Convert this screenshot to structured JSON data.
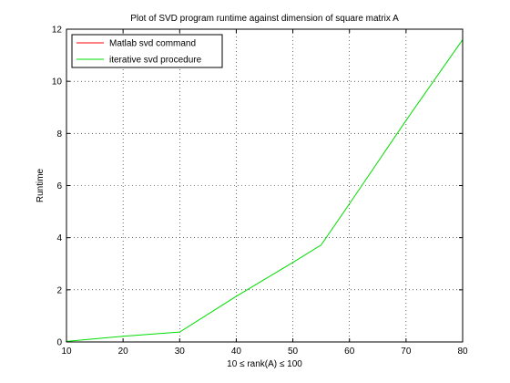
{
  "chart_data": {
    "type": "line",
    "title": "Plot of SVD program runtime against dimension of square matrix A",
    "xlabel": "10 ≤ rank(A) ≤ 100",
    "ylabel": "Runtime",
    "xlim": [
      10,
      80
    ],
    "ylim": [
      0,
      12
    ],
    "xticks": [
      10,
      20,
      30,
      40,
      50,
      60,
      70,
      80
    ],
    "yticks": [
      0,
      2,
      4,
      6,
      8,
      10,
      12
    ],
    "grid": true,
    "legend_position": "top-left",
    "series": [
      {
        "name": "Matlab svd command",
        "color": "#ff0000",
        "x": [
          10,
          20,
          30,
          40,
          50,
          55,
          60,
          70,
          80
        ],
        "y": [
          0.0,
          0.0,
          0.0,
          0.0,
          0.0,
          0.0,
          0.0,
          0.0,
          0.0
        ]
      },
      {
        "name": "iterative svd procedure",
        "color": "#00dd00",
        "x": [
          10,
          20,
          30,
          40,
          50,
          55,
          60,
          70,
          80
        ],
        "y": [
          0.02,
          0.22,
          0.38,
          1.75,
          3.05,
          3.72,
          5.3,
          8.5,
          11.6
        ]
      }
    ]
  }
}
